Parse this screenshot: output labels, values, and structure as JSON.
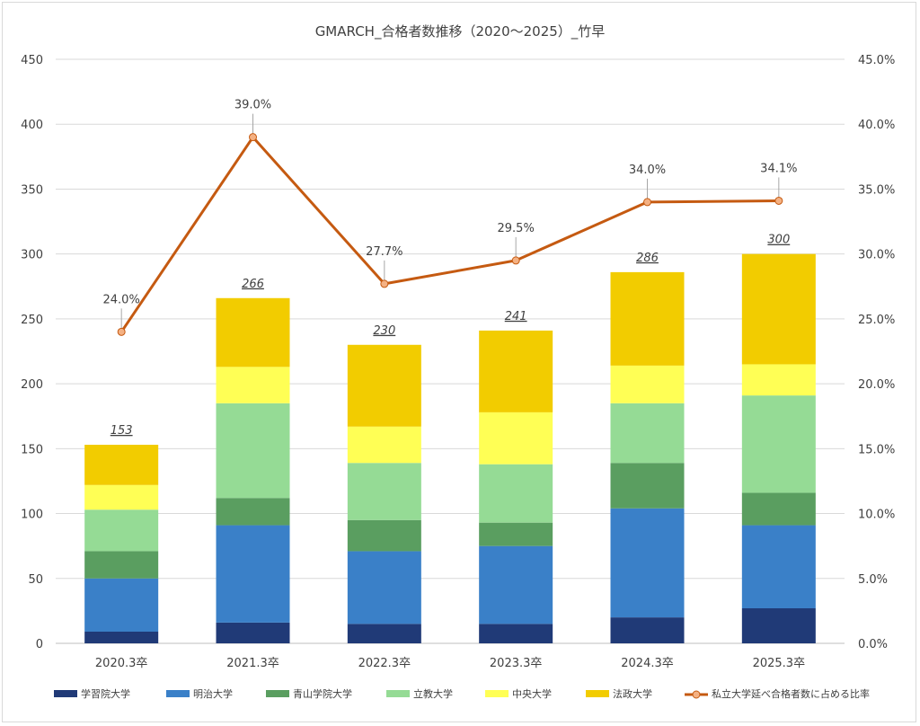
{
  "chart_data": {
    "type": "bar",
    "stacked": true,
    "title": "GMARCH_合格者数推移（2020～2025）_竹早",
    "categories": [
      "2020.3卒",
      "2021.3卒",
      "2022.3卒",
      "2023.3卒",
      "2024.3卒",
      "2025.3卒"
    ],
    "ylim": [
      0,
      450
    ],
    "y_ticks": [
      "0",
      "50",
      "100",
      "150",
      "200",
      "250",
      "300",
      "350",
      "400",
      "450"
    ],
    "y2lim": [
      0,
      45
    ],
    "y2_ticks": [
      "0.0%",
      "5.0%",
      "10.0%",
      "15.0%",
      "20.0%",
      "25.0%",
      "30.0%",
      "35.0%",
      "40.0%",
      "45.0%"
    ],
    "grid": true,
    "legend_position": "bottom",
    "series": [
      {
        "name": "学習院大学",
        "color": "#203a77",
        "values": [
          9,
          16,
          15,
          15,
          20,
          27
        ]
      },
      {
        "name": "明治大学",
        "color": "#3a80c8",
        "values": [
          41,
          75,
          56,
          60,
          84,
          64
        ]
      },
      {
        "name": "青山学院大学",
        "color": "#5a9e60",
        "values": [
          21,
          21,
          24,
          18,
          35,
          25
        ]
      },
      {
        "name": "立教大学",
        "color": "#95db95",
        "values": [
          32,
          73,
          44,
          45,
          46,
          75
        ]
      },
      {
        "name": "中央大学",
        "color": "#ffff55",
        "values": [
          19,
          28,
          28,
          40,
          29,
          24
        ]
      },
      {
        "name": "法政大学",
        "color": "#f2cc00",
        "values": [
          31,
          53,
          63,
          63,
          72,
          85
        ]
      }
    ],
    "totals": [
      "153",
      "266",
      "230",
      "241",
      "286",
      "300"
    ],
    "line_series": {
      "name": "私立大学延べ合格者数に占める比率",
      "color": "#c55a11",
      "marker_color": "#f4b183",
      "axis": "right",
      "values": [
        24.0,
        39.0,
        27.7,
        29.5,
        34.0,
        34.1
      ],
      "labels": [
        "24.0%",
        "39.0%",
        "27.7%",
        "29.5%",
        "34.0%",
        "34.1%"
      ]
    }
  }
}
